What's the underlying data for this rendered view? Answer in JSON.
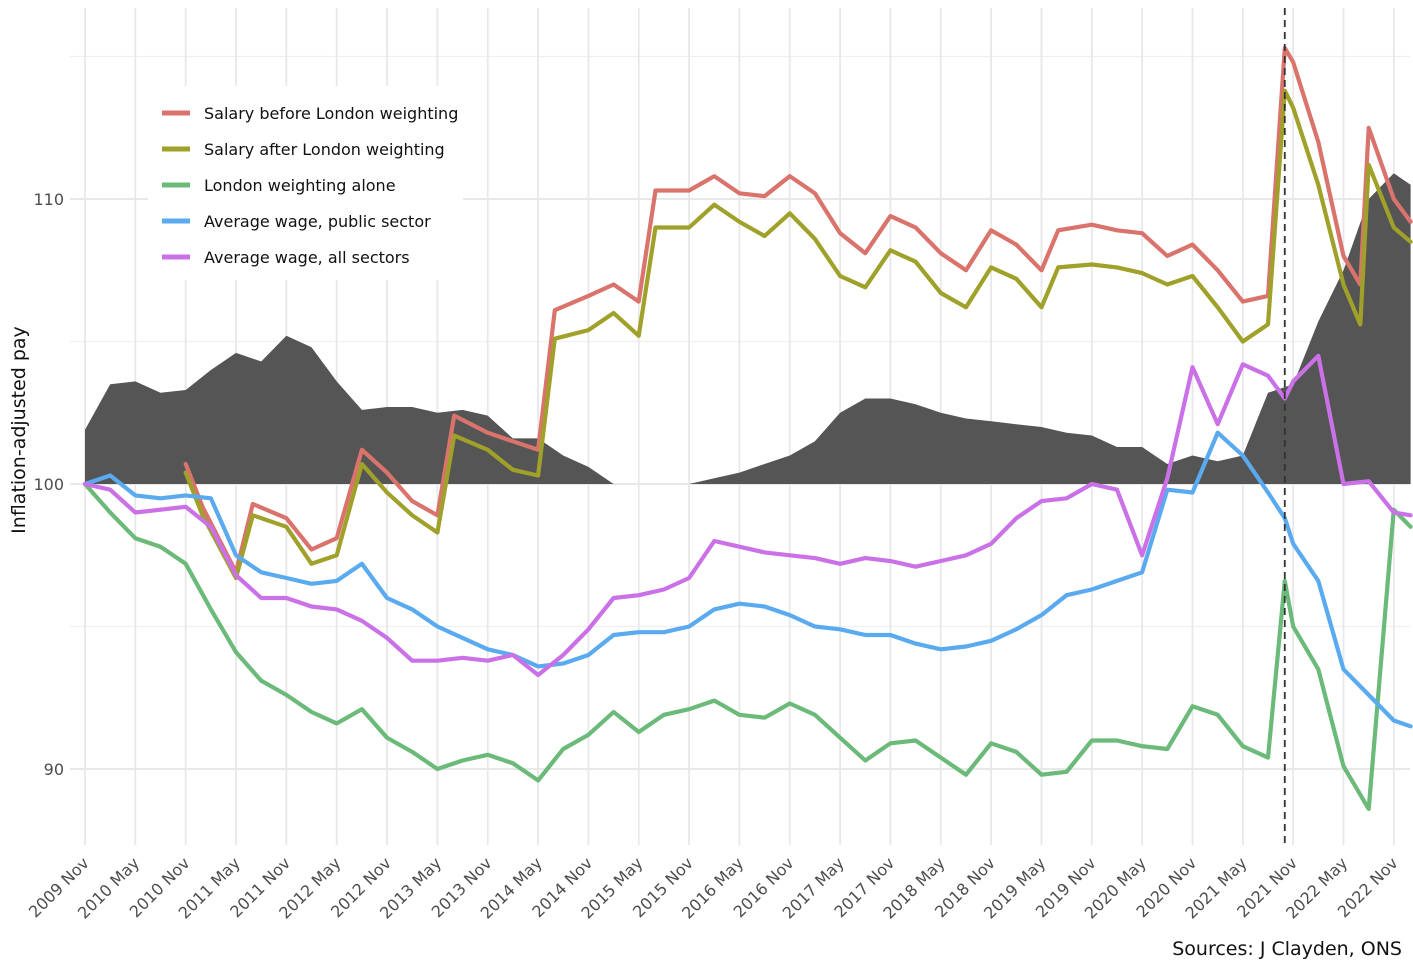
{
  "chart_data": {
    "type": "line",
    "title": "",
    "xlabel": "",
    "ylabel": "Inflation-adjusted pay",
    "caption": "Sources: J Clayden, ONS",
    "baseline": 100,
    "ylim": [
      87.3,
      115.7
    ],
    "xlim": [
      "2009-11",
      "2023-01"
    ],
    "grid": true,
    "legend_position": "top-left",
    "y_ticks": [
      90,
      100,
      110
    ],
    "x_ticks": [
      "2009 Nov",
      "2010 May",
      "2010 Nov",
      "2011 May",
      "2011 Nov",
      "2012 May",
      "2012 Nov",
      "2013 May",
      "2013 Nov",
      "2014 May",
      "2014 Nov",
      "2015 May",
      "2015 Nov",
      "2016 May",
      "2016 Nov",
      "2017 May",
      "2017 Nov",
      "2018 May",
      "2018 Nov",
      "2019 May",
      "2019 Nov",
      "2020 May",
      "2020 Nov",
      "2021 May",
      "2021 Nov",
      "2022 May",
      "2022 Nov"
    ],
    "marker_line": {
      "x": "2021-10",
      "style": "dashed"
    },
    "area": {
      "color": "#555555",
      "x": [
        "2009-11",
        "2010-02",
        "2010-05",
        "2010-08",
        "2010-11",
        "2011-02",
        "2011-05",
        "2011-08",
        "2011-11",
        "2012-02",
        "2012-05",
        "2012-08",
        "2012-11",
        "2013-02",
        "2013-05",
        "2013-08",
        "2013-11",
        "2014-02",
        "2014-05",
        "2014-08",
        "2014-11",
        "2015-02",
        "2015-05",
        "2015-08",
        "2015-11",
        "2016-02",
        "2016-05",
        "2016-08",
        "2016-11",
        "2017-02",
        "2017-05",
        "2017-08",
        "2017-11",
        "2018-02",
        "2018-05",
        "2018-08",
        "2018-11",
        "2019-02",
        "2019-05",
        "2019-08",
        "2019-11",
        "2020-02",
        "2020-05",
        "2020-08",
        "2020-11",
        "2021-02",
        "2021-05",
        "2021-08",
        "2021-11",
        "2022-02",
        "2022-05",
        "2022-08",
        "2022-11",
        "2023-01"
      ],
      "values": [
        101.9,
        103.5,
        103.6,
        103.2,
        103.3,
        104.0,
        104.6,
        104.3,
        105.2,
        104.8,
        103.6,
        102.6,
        102.7,
        102.7,
        102.5,
        102.6,
        102.4,
        101.6,
        101.6,
        101.0,
        100.6,
        100.0,
        100.0,
        100.0,
        100.0,
        100.2,
        100.4,
        100.7,
        101.0,
        101.5,
        102.5,
        103.0,
        103.0,
        102.8,
        102.5,
        102.3,
        102.2,
        102.1,
        102.0,
        101.8,
        101.7,
        101.3,
        101.3,
        100.7,
        101.0,
        100.8,
        101.0,
        103.2,
        103.5,
        105.7,
        107.5,
        110.0,
        110.9,
        110.5
      ]
    },
    "series": [
      {
        "name": "Salary before London weighting",
        "color": "#d9736c",
        "x": [
          "2009-11",
          "2010-05",
          "2010-07",
          "2010-11",
          "2011-01",
          "2011-05",
          "2011-07",
          "2011-11",
          "2012-02",
          "2012-05",
          "2012-08",
          "2012-11",
          "2013-02",
          "2013-05",
          "2013-07",
          "2013-11",
          "2014-02",
          "2014-05",
          "2014-07",
          "2014-11",
          "2015-02",
          "2015-05",
          "2015-07",
          "2015-11",
          "2016-02",
          "2016-05",
          "2016-08",
          "2016-11",
          "2017-02",
          "2017-05",
          "2017-08",
          "2017-11",
          "2018-02",
          "2018-05",
          "2018-08",
          "2018-11",
          "2019-02",
          "2019-05",
          "2019-07",
          "2019-11",
          "2020-02",
          "2020-05",
          "2020-08",
          "2020-11",
          "2021-02",
          "2021-05",
          "2021-08",
          "2021-10",
          "2021-11",
          "2022-02",
          "2022-05",
          "2022-07",
          "2022-08",
          "2022-11",
          "2023-01"
        ],
        "values": [
          100,
          null,
          null,
          100.7,
          99.2,
          96.9,
          99.3,
          98.8,
          97.7,
          98.1,
          101.2,
          100.4,
          99.4,
          98.9,
          102.4,
          101.8,
          101.5,
          101.2,
          106.1,
          106.6,
          107.0,
          106.4,
          110.3,
          110.3,
          110.8,
          110.2,
          110.1,
          110.8,
          110.2,
          108.8,
          108.1,
          109.4,
          109.0,
          108.1,
          107.5,
          108.9,
          108.4,
          107.5,
          108.9,
          109.1,
          108.9,
          108.8,
          108.0,
          108.4,
          107.5,
          106.4,
          106.6,
          115.3,
          114.8,
          112.0,
          108.0,
          107.0,
          112.5,
          110.0,
          109.2
        ]
      },
      {
        "name": "Salary after London weighting",
        "color": "#a0a12a",
        "x": [
          "2009-11",
          "2010-05",
          "2010-07",
          "2010-11",
          "2011-01",
          "2011-05",
          "2011-07",
          "2011-11",
          "2012-02",
          "2012-05",
          "2012-08",
          "2012-11",
          "2013-02",
          "2013-05",
          "2013-07",
          "2013-11",
          "2014-02",
          "2014-05",
          "2014-07",
          "2014-11",
          "2015-02",
          "2015-05",
          "2015-07",
          "2015-11",
          "2016-02",
          "2016-05",
          "2016-08",
          "2016-11",
          "2017-02",
          "2017-05",
          "2017-08",
          "2017-11",
          "2018-02",
          "2018-05",
          "2018-08",
          "2018-11",
          "2019-02",
          "2019-05",
          "2019-07",
          "2019-11",
          "2020-02",
          "2020-05",
          "2020-08",
          "2020-11",
          "2021-02",
          "2021-05",
          "2021-08",
          "2021-10",
          "2021-11",
          "2022-02",
          "2022-05",
          "2022-07",
          "2022-08",
          "2022-11",
          "2023-01"
        ],
        "values": [
          100,
          null,
          null,
          100.4,
          98.9,
          96.7,
          98.9,
          98.5,
          97.2,
          97.5,
          100.7,
          99.7,
          98.9,
          98.3,
          101.7,
          101.2,
          100.5,
          100.3,
          105.1,
          105.4,
          106.0,
          105.2,
          109.0,
          109.0,
          109.8,
          109.2,
          108.7,
          109.5,
          108.6,
          107.3,
          106.9,
          108.2,
          107.8,
          106.7,
          106.2,
          107.6,
          107.2,
          106.2,
          107.6,
          107.7,
          107.6,
          107.4,
          107.0,
          107.3,
          106.2,
          105.0,
          105.6,
          113.8,
          113.2,
          110.5,
          107.0,
          105.6,
          111.2,
          109.0,
          108.5
        ]
      },
      {
        "name": "London weighting alone",
        "color": "#6bba79",
        "x": [
          "2009-11",
          "2010-02",
          "2010-05",
          "2010-08",
          "2010-11",
          "2011-02",
          "2011-05",
          "2011-08",
          "2011-11",
          "2012-02",
          "2012-05",
          "2012-08",
          "2012-11",
          "2013-02",
          "2013-05",
          "2013-08",
          "2013-11",
          "2014-02",
          "2014-05",
          "2014-08",
          "2014-11",
          "2015-02",
          "2015-05",
          "2015-08",
          "2015-11",
          "2016-02",
          "2016-05",
          "2016-08",
          "2016-11",
          "2017-02",
          "2017-05",
          "2017-08",
          "2017-11",
          "2018-02",
          "2018-05",
          "2018-08",
          "2018-11",
          "2019-02",
          "2019-05",
          "2019-08",
          "2019-11",
          "2020-02",
          "2020-05",
          "2020-08",
          "2020-11",
          "2021-02",
          "2021-05",
          "2021-08",
          "2021-10",
          "2021-11",
          "2022-02",
          "2022-05",
          "2022-08",
          "2022-11",
          "2023-01"
        ],
        "values": [
          100,
          99.0,
          98.1,
          97.8,
          97.2,
          95.6,
          94.1,
          93.1,
          92.6,
          92.0,
          91.6,
          92.1,
          91.1,
          90.6,
          90.0,
          90.3,
          90.5,
          90.2,
          89.6,
          90.7,
          91.2,
          92.0,
          91.3,
          91.9,
          92.1,
          92.4,
          91.9,
          91.8,
          92.3,
          91.9,
          91.1,
          90.3,
          90.9,
          91.0,
          90.4,
          89.8,
          90.9,
          90.6,
          89.8,
          89.9,
          91.0,
          91.0,
          90.8,
          90.7,
          92.2,
          91.9,
          90.8,
          90.4,
          96.6,
          95.0,
          93.5,
          90.1,
          88.6,
          99.1,
          98.5
        ]
      },
      {
        "name": "Average wage, public sector",
        "color": "#5aaaf0",
        "x": [
          "2009-11",
          "2010-02",
          "2010-05",
          "2010-08",
          "2010-11",
          "2011-02",
          "2011-05",
          "2011-08",
          "2011-11",
          "2012-02",
          "2012-05",
          "2012-08",
          "2012-11",
          "2013-02",
          "2013-05",
          "2013-08",
          "2013-11",
          "2014-02",
          "2014-05",
          "2014-08",
          "2014-11",
          "2015-02",
          "2015-05",
          "2015-08",
          "2015-11",
          "2016-02",
          "2016-05",
          "2016-08",
          "2016-11",
          "2017-02",
          "2017-05",
          "2017-08",
          "2017-11",
          "2018-02",
          "2018-05",
          "2018-08",
          "2018-11",
          "2019-02",
          "2019-05",
          "2019-08",
          "2019-11",
          "2020-02",
          "2020-05",
          "2020-08",
          "2020-11",
          "2021-02",
          "2021-05",
          "2021-08",
          "2021-10",
          "2021-11",
          "2022-02",
          "2022-05",
          "2022-08",
          "2022-11",
          "2023-01"
        ],
        "values": [
          100,
          100.3,
          99.6,
          99.5,
          99.6,
          99.5,
          97.5,
          96.9,
          96.7,
          96.5,
          96.6,
          97.2,
          96.0,
          95.6,
          95.0,
          94.6,
          94.2,
          94.0,
          93.6,
          93.7,
          94.0,
          94.7,
          94.8,
          94.8,
          95.0,
          95.6,
          95.8,
          95.7,
          95.4,
          95.0,
          94.9,
          94.7,
          94.7,
          94.4,
          94.2,
          94.3,
          94.5,
          94.9,
          95.4,
          96.1,
          96.3,
          96.6,
          96.9,
          99.8,
          99.7,
          101.8,
          101.0,
          99.7,
          98.8,
          97.9,
          96.6,
          93.5,
          92.6,
          91.7,
          91.5
        ]
      },
      {
        "name": "Average wage, all sectors",
        "color": "#cb71e8",
        "x": [
          "2009-11",
          "2010-02",
          "2010-05",
          "2010-08",
          "2010-11",
          "2011-02",
          "2011-05",
          "2011-08",
          "2011-11",
          "2012-02",
          "2012-05",
          "2012-08",
          "2012-11",
          "2013-02",
          "2013-05",
          "2013-08",
          "2013-11",
          "2014-02",
          "2014-05",
          "2014-08",
          "2014-11",
          "2015-02",
          "2015-05",
          "2015-08",
          "2015-11",
          "2016-02",
          "2016-05",
          "2016-08",
          "2016-11",
          "2017-02",
          "2017-05",
          "2017-08",
          "2017-11",
          "2018-02",
          "2018-05",
          "2018-08",
          "2018-11",
          "2019-02",
          "2019-05",
          "2019-08",
          "2019-11",
          "2020-02",
          "2020-05",
          "2020-08",
          "2020-11",
          "2021-02",
          "2021-05",
          "2021-08",
          "2021-10",
          "2021-11",
          "2022-02",
          "2022-05",
          "2022-08",
          "2022-11",
          "2023-01"
        ],
        "values": [
          100,
          99.8,
          99.0,
          99.1,
          99.2,
          98.5,
          96.8,
          96.0,
          96.0,
          95.7,
          95.6,
          95.2,
          94.6,
          93.8,
          93.8,
          93.9,
          93.8,
          94.0,
          93.3,
          94.0,
          94.9,
          96.0,
          96.1,
          96.3,
          96.7,
          98.0,
          97.8,
          97.6,
          97.5,
          97.4,
          97.2,
          97.4,
          97.3,
          97.1,
          97.3,
          97.5,
          97.9,
          98.8,
          99.4,
          99.5,
          100.0,
          99.8,
          97.5,
          100.2,
          104.1,
          102.1,
          104.2,
          103.8,
          103.0,
          103.6,
          104.5,
          100.0,
          100.1,
          99.0,
          98.9
        ]
      }
    ]
  }
}
